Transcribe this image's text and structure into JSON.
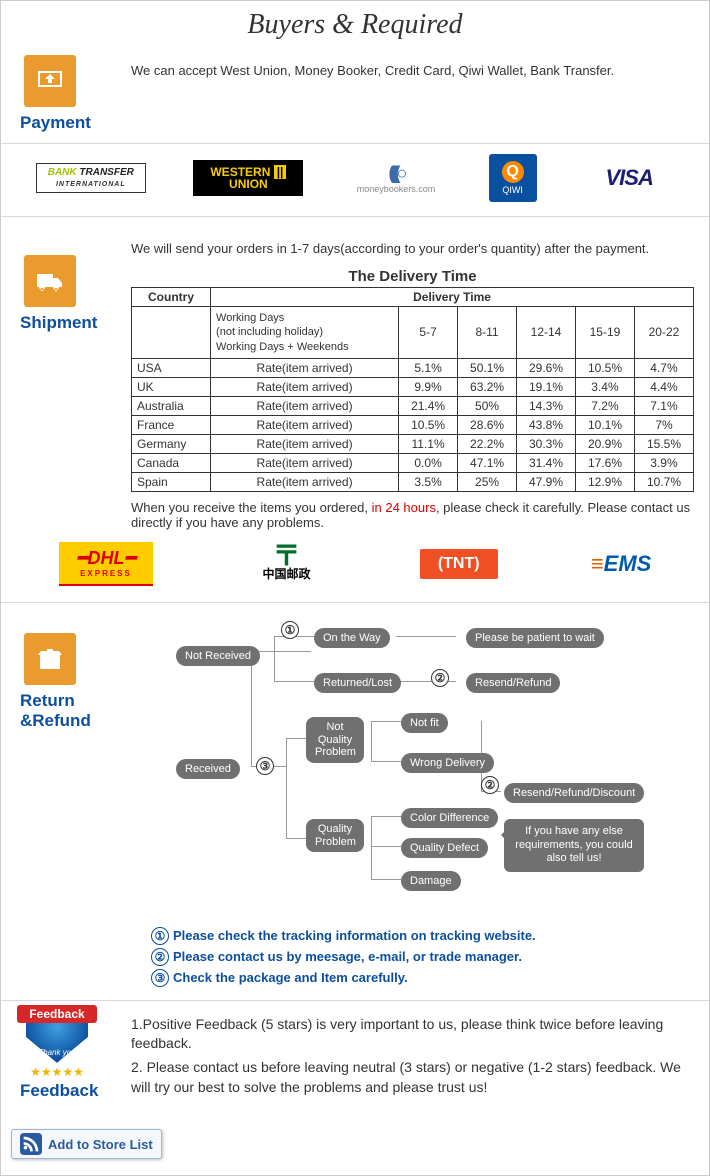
{
  "header": {
    "title": "Buyers & Required"
  },
  "payment": {
    "label": "Payment",
    "text": "We can accept West Union, Money Booker, Credit Card, Qiwi Wallet, Bank Transfer.",
    "logos": {
      "bank_transfer": "BANK TRANSFER",
      "bank_transfer_sub": "INTERNATIONAL",
      "western_union_1": "WESTERN",
      "western_union_2": "UNION",
      "moneybookers": "moneybookers.com",
      "qiwi": "QIWI",
      "visa": "VISA"
    }
  },
  "shipment": {
    "label": "Shipment",
    "intro": "We will send your orders in 1-7 days(according to your order's quantity) after the payment.",
    "table_title": "The Delivery Time",
    "columns": {
      "country": "Country",
      "delivery": "Delivery Time"
    },
    "sub_header_1": "Working Days",
    "sub_header_2": "(not including holiday)",
    "sub_header_3": "Working Days + Weekends",
    "ranges": [
      "5-7",
      "8-11",
      "12-14",
      "15-19",
      "20-22"
    ],
    "rate_label": "Rate(item arrived)",
    "rows": [
      {
        "country": "USA",
        "rates": [
          "5.1%",
          "50.1%",
          "29.6%",
          "10.5%",
          "4.7%"
        ]
      },
      {
        "country": "UK",
        "rates": [
          "9.9%",
          "63.2%",
          "19.1%",
          "3.4%",
          "4.4%"
        ]
      },
      {
        "country": "Australia",
        "rates": [
          "21.4%",
          "50%",
          "14.3%",
          "7.2%",
          "7.1%"
        ]
      },
      {
        "country": "France",
        "rates": [
          "10.5%",
          "28.6%",
          "43.8%",
          "10.1%",
          "7%"
        ]
      },
      {
        "country": "Germany",
        "rates": [
          "11.1%",
          "22.2%",
          "30.3%",
          "20.9%",
          "15.5%"
        ]
      },
      {
        "country": "Canada",
        "rates": [
          "0.0%",
          "47.1%",
          "31.4%",
          "17.6%",
          "3.9%"
        ]
      },
      {
        "country": "Spain",
        "rates": [
          "3.5%",
          "25%",
          "47.9%",
          "12.9%",
          "10.7%"
        ]
      }
    ],
    "after_1": "When you receive the items you ordered, ",
    "after_red": "in 24 hours",
    "after_2": ", please check it carefully. Please contact us directly if you have any problems.",
    "ship_logos": {
      "dhl": "DHL",
      "dhl_sub": "EXPRESS",
      "chinapost": "中国邮政",
      "tnt": "TNT",
      "ems": "EMS"
    }
  },
  "return": {
    "label": "Return &Refund",
    "flow": {
      "not_received": "Not Received",
      "received": "Received",
      "on_the_way": "On the Way",
      "returned_lost": "Returned/Lost",
      "patient": "Please be patient to wait",
      "resend_refund": "Resend/Refund",
      "not_quality": "Not\nQuality\nProblem",
      "quality": "Quality\nProblem",
      "not_fit": "Not fit",
      "wrong_delivery": "Wrong Delivery",
      "color_diff": "Color Difference",
      "quality_defect": "Quality Defect",
      "damage": "Damage",
      "resend_refund_disc": "Resend/Refund/Discount",
      "speech": "If you have any else requirements, you could also tell us!"
    },
    "notes": {
      "n1": "Please check the tracking information on tracking website.",
      "n2": "Please contact us by meesage, e-mail, or trade manager.",
      "n3": "Check the package and Item carefully."
    }
  },
  "feedback": {
    "label": "Feedback",
    "badge_text": "Feedback",
    "badge_thanks": "Thank you",
    "p1": "1.Positive Feedback (5 stars) is very important to us, please think twice before leaving feedback.",
    "p2": "2. Please contact us before leaving neutral (3 stars) or negative (1-2 stars) feedback. We will try our best to solve the problems and please trust us!"
  },
  "add_store": "Add to Store List"
}
